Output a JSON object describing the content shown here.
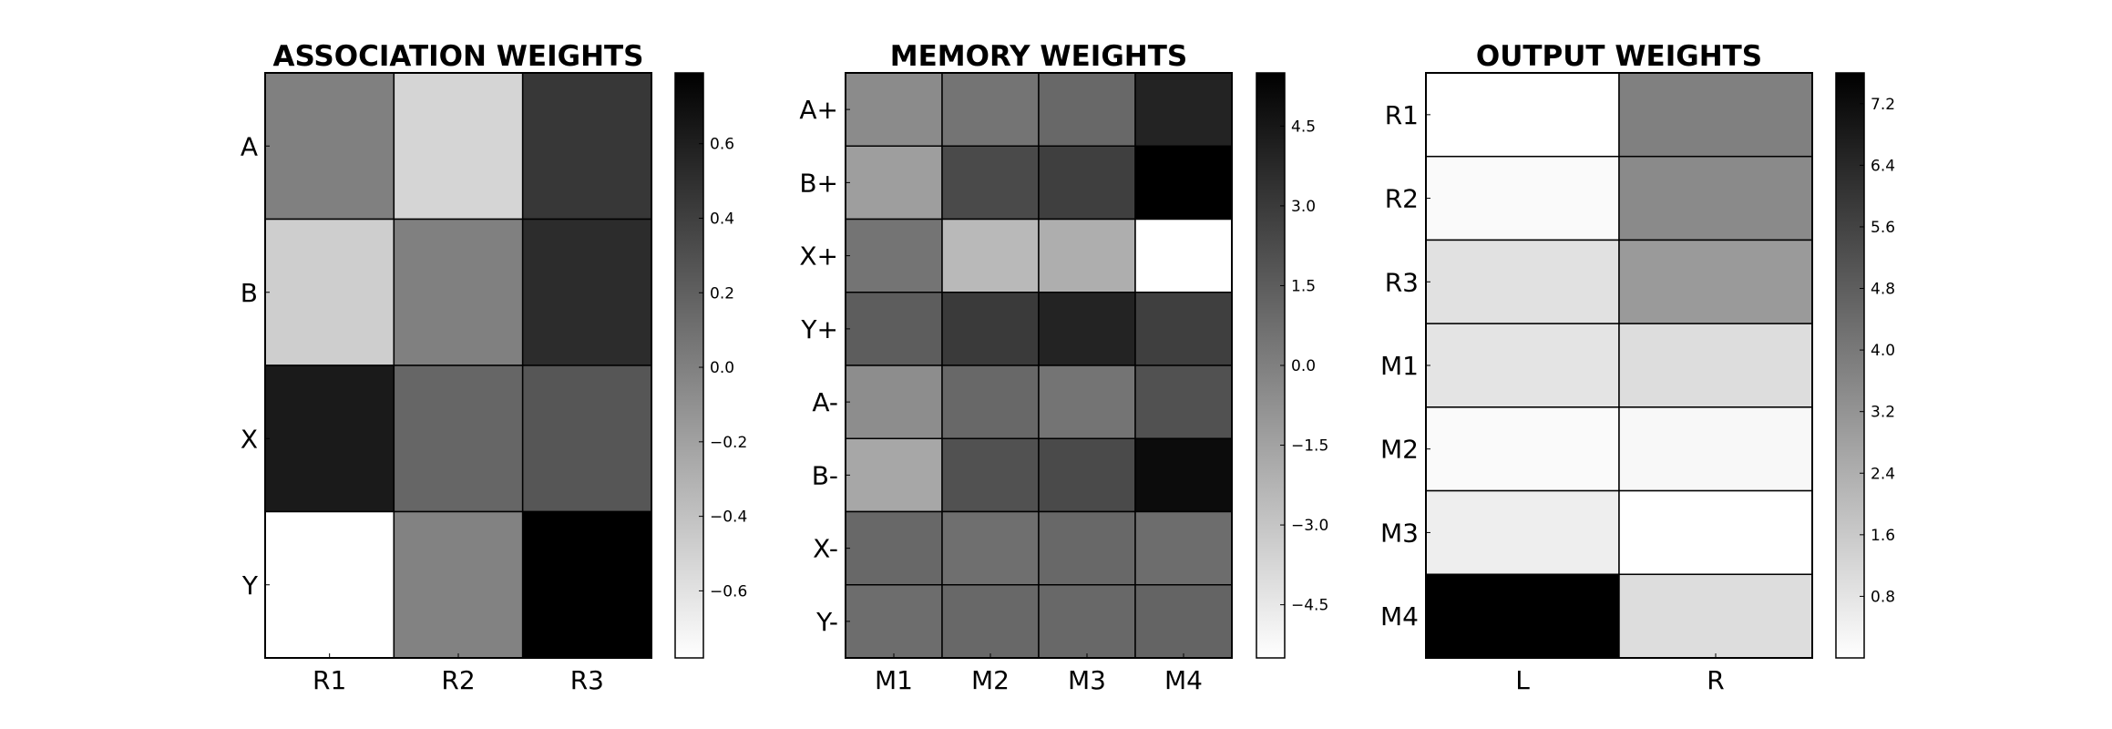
{
  "chart_data": [
    {
      "type": "heatmap",
      "title": "ASSOCIATION WEIGHTS",
      "rows": [
        "A",
        "B",
        "X",
        "Y"
      ],
      "columns": [
        "R1",
        "R2",
        "R3"
      ],
      "values": [
        [
          0.0,
          -0.52,
          0.45
        ],
        [
          -0.48,
          0.0,
          0.52
        ],
        [
          0.63,
          0.16,
          0.26
        ],
        [
          -0.78,
          -0.01,
          0.79
        ]
      ],
      "vmin": -0.78,
      "vmax": 0.79,
      "colormap": "gray_r",
      "colorbar_ticks": [
        "0.6",
        "0.4",
        "0.2",
        "0.0",
        "−0.2",
        "−0.4",
        "−0.6"
      ],
      "colorbar_tick_values": [
        0.6,
        0.4,
        0.2,
        0.0,
        -0.2,
        -0.4,
        -0.6
      ]
    },
    {
      "type": "heatmap",
      "title": "MEMORY WEIGHTS",
      "rows": [
        "A+",
        "B+",
        "X+",
        "Y+",
        "A-",
        "B-",
        "X-",
        "Y-"
      ],
      "columns": [
        "M1",
        "M2",
        "M3",
        "M4"
      ],
      "values": [
        [
          -0.5,
          0.5,
          1.0,
          4.0
        ],
        [
          -1.3,
          2.3,
          2.8,
          5.5
        ],
        [
          0.5,
          -2.5,
          -2.0,
          -5.5
        ],
        [
          1.5,
          3.0,
          4.0,
          2.8
        ],
        [
          -0.6,
          1.0,
          0.5,
          2.0
        ],
        [
          -1.7,
          2.0,
          2.3,
          5.0
        ],
        [
          1.0,
          0.7,
          1.0,
          0.8
        ],
        [
          0.8,
          1.0,
          1.0,
          1.2
        ]
      ],
      "vmin": -5.5,
      "vmax": 5.5,
      "colormap": "gray_r",
      "colorbar_ticks": [
        "4.5",
        "3.0",
        "1.5",
        "0.0",
        "−1.5",
        "−3.0",
        "−4.5"
      ],
      "colorbar_tick_values": [
        4.5,
        3.0,
        1.5,
        0.0,
        -1.5,
        -3.0,
        -4.5
      ]
    },
    {
      "type": "heatmap",
      "title": "OUTPUT WEIGHTS",
      "rows": [
        "R1",
        "R2",
        "R3",
        "M1",
        "M2",
        "M3",
        "M4"
      ],
      "columns": [
        "L",
        "R"
      ],
      "values": [
        [
          0.0,
          3.8
        ],
        [
          0.15,
          3.5
        ],
        [
          0.9,
          3.0
        ],
        [
          0.8,
          1.0
        ],
        [
          0.15,
          0.2
        ],
        [
          0.5,
          0.0
        ],
        [
          7.6,
          1.0
        ]
      ],
      "vmin": 0.0,
      "vmax": 7.6,
      "colormap": "gray_r",
      "colorbar_ticks": [
        "7.2",
        "6.4",
        "5.6",
        "4.8",
        "4.0",
        "3.2",
        "2.4",
        "1.6",
        "0.8"
      ],
      "colorbar_tick_values": [
        7.2,
        6.4,
        5.6,
        4.8,
        4.0,
        3.2,
        2.4,
        1.6,
        0.8
      ]
    }
  ]
}
